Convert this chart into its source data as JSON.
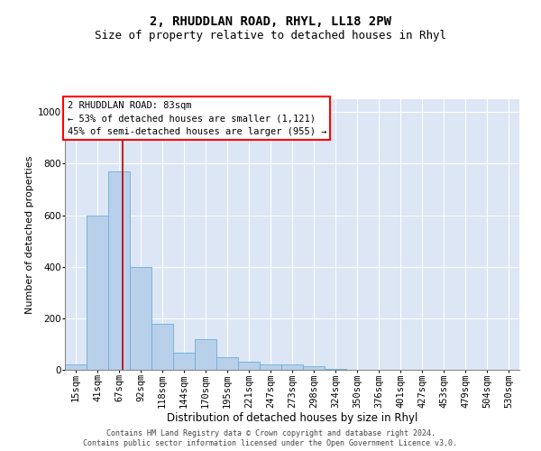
{
  "title1": "2, RHUDDLAN ROAD, RHYL, LL18 2PW",
  "title2": "Size of property relative to detached houses in Rhyl",
  "xlabel": "Distribution of detached houses by size in Rhyl",
  "ylabel": "Number of detached properties",
  "footer1": "Contains HM Land Registry data © Crown copyright and database right 2024.",
  "footer2": "Contains public sector information licensed under the Open Government Licence v3.0.",
  "bin_labels": [
    "15sqm",
    "41sqm",
    "67sqm",
    "92sqm",
    "118sqm",
    "144sqm",
    "170sqm",
    "195sqm",
    "221sqm",
    "247sqm",
    "273sqm",
    "298sqm",
    "324sqm",
    "350sqm",
    "376sqm",
    "401sqm",
    "427sqm",
    "453sqm",
    "479sqm",
    "504sqm",
    "530sqm"
  ],
  "bar_values": [
    20,
    600,
    770,
    400,
    180,
    65,
    120,
    50,
    30,
    20,
    20,
    15,
    2,
    0,
    0,
    0,
    0,
    0,
    0,
    0,
    0
  ],
  "bar_color": "#b8d0ea",
  "bar_edge_color": "#6baed6",
  "background_color": "#dce6f5",
  "grid_color": "#ffffff",
  "annotation_box_text": "2 RHUDDLAN ROAD: 83sqm\n← 53% of detached houses are smaller (1,121)\n45% of semi-detached houses are larger (955) →",
  "vline_x": 2.68,
  "vline_color": "#bb0000",
  "ylim": [
    0,
    1050
  ],
  "yticks": [
    0,
    200,
    400,
    600,
    800,
    1000
  ],
  "title1_fontsize": 10,
  "title2_fontsize": 9,
  "xlabel_fontsize": 8.5,
  "ylabel_fontsize": 8,
  "tick_fontsize": 7.5,
  "annotation_fontsize": 7.5,
  "footer_fontsize": 6.0
}
